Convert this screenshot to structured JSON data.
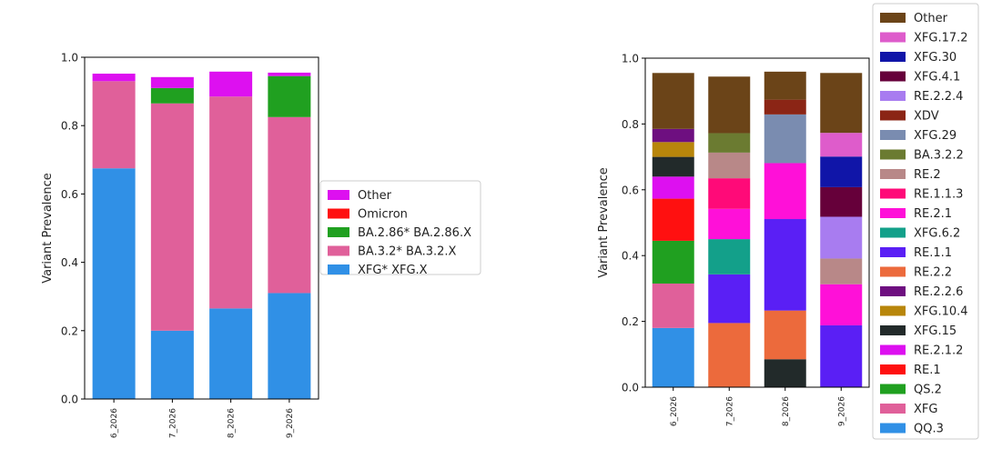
{
  "chart_data": [
    {
      "type": "bar",
      "stacked": true,
      "ylabel": "Variant Prevalence",
      "xlabel": "",
      "ylim": [
        0,
        1.0
      ],
      "yticks": [
        "0.0",
        "0.2",
        "0.4",
        "0.6",
        "0.8",
        "1.0"
      ],
      "categories": [
        "6_2026",
        "7_2026",
        "8_2026",
        "9_2026"
      ],
      "legend_position": "right",
      "legend": [
        "Other",
        "Omicron",
        "BA.2.86* BA.2.86.X",
        "BA.3.2* BA.3.2.X",
        "XFG* XFG.X"
      ],
      "series": [
        {
          "name": "XFG* XFG.X",
          "color": "#3090e6",
          "values": [
            0.675,
            0.2,
            0.265,
            0.31
          ]
        },
        {
          "name": "BA.3.2* BA.3.2.X",
          "color": "#e0609a",
          "values": [
            0.255,
            0.665,
            0.62,
            0.515
          ]
        },
        {
          "name": "BA.2.86* BA.2.86.X",
          "color": "#20a020",
          "values": [
            0.0,
            0.045,
            0.0,
            0.12
          ]
        },
        {
          "name": "Omicron",
          "color": "#ff1010",
          "values": [
            0.0,
            0.0,
            0.0,
            0.0
          ]
        },
        {
          "name": "Other",
          "color": "#dd10f0",
          "values": [
            0.022,
            0.032,
            0.073,
            0.01
          ]
        }
      ]
    },
    {
      "type": "bar",
      "stacked": true,
      "ylabel": "Variant Prevalence",
      "xlabel": "",
      "ylim": [
        0,
        1.0
      ],
      "yticks": [
        "0.0",
        "0.2",
        "0.4",
        "0.6",
        "0.8",
        "1.0"
      ],
      "categories": [
        "6_2026",
        "7_2026",
        "8_2026",
        "9_2026"
      ],
      "legend_position": "right",
      "legend": [
        "Other",
        "XFG.17.2",
        "XFG.30",
        "XFG.4.1",
        "RE.2.2.4",
        "XDV",
        "XFG.29",
        "BA.3.2.2",
        "RE.2",
        "RE.1.1.3",
        "RE.2.1",
        "XFG.6.2",
        "RE.1.1",
        "RE.2.2",
        "RE.2.2.6",
        "XFG.10.4",
        "XFG.15",
        "RE.2.1.2",
        "RE.1",
        "QS.2",
        "XFG",
        "QQ.3"
      ],
      "series": [
        {
          "name": "QQ.3",
          "color": "#3090e6",
          "values": [
            0.18,
            0,
            0,
            0
          ]
        },
        {
          "name": "XFG",
          "color": "#e0609a",
          "values": [
            0.135,
            0,
            0,
            0
          ]
        },
        {
          "name": "QS.2",
          "color": "#20a020",
          "values": [
            0.13,
            0,
            0,
            0
          ]
        },
        {
          "name": "RE.1",
          "color": "#ff1010",
          "values": [
            0.128,
            0,
            0,
            0
          ]
        },
        {
          "name": "RE.2.1.2",
          "color": "#dd10f0",
          "values": [
            0.067,
            0,
            0,
            0
          ]
        },
        {
          "name": "XFG.15",
          "color": "#222a2a",
          "values": [
            0.06,
            0,
            0.085,
            0
          ]
        },
        {
          "name": "XFG.10.4",
          "color": "#b8860b",
          "values": [
            0.045,
            0,
            0,
            0
          ]
        },
        {
          "name": "RE.2.2.6",
          "color": "#6e0f80",
          "values": [
            0.04,
            0,
            0,
            0
          ]
        },
        {
          "name": "RE.2.2",
          "color": "#ec6a3c",
          "values": [
            0,
            0.195,
            0.148,
            0
          ]
        },
        {
          "name": "RE.1.1",
          "color": "#5a1ff5",
          "values": [
            0,
            0.148,
            0.278,
            0.188
          ]
        },
        {
          "name": "XFG.6.2",
          "color": "#13a08a",
          "values": [
            0,
            0.107,
            0,
            0
          ]
        },
        {
          "name": "RE.2.1",
          "color": "#ff10d8",
          "values": [
            0,
            0.092,
            0.17,
            0.125
          ]
        },
        {
          "name": "RE.1.1.3",
          "color": "#ff0a78",
          "values": [
            0,
            0.093,
            0,
            0
          ]
        },
        {
          "name": "RE.2",
          "color": "#b88888",
          "values": [
            0,
            0.078,
            0,
            0.078
          ]
        },
        {
          "name": "BA.3.2.2",
          "color": "#6b7b31",
          "values": [
            0,
            0.059,
            0,
            0
          ]
        },
        {
          "name": "XFG.29",
          "color": "#7a8cb0",
          "values": [
            0,
            0,
            0.148,
            0
          ]
        },
        {
          "name": "XDV",
          "color": "#8b2515",
          "values": [
            0,
            0,
            0.045,
            0
          ]
        },
        {
          "name": "RE.2.2.4",
          "color": "#a87cf0",
          "values": [
            0,
            0,
            0,
            0.127
          ]
        },
        {
          "name": "XFG.4.1",
          "color": "#66003a",
          "values": [
            0,
            0,
            0,
            0.09
          ]
        },
        {
          "name": "XFG.30",
          "color": "#1015a8",
          "values": [
            0,
            0,
            0,
            0.093
          ]
        },
        {
          "name": "XFG.17.2",
          "color": "#de5ccb",
          "values": [
            0,
            0,
            0,
            0.072
          ]
        },
        {
          "name": "Other",
          "color": "#6b4418",
          "values": [
            0.17,
            0.172,
            0.085,
            0.182
          ]
        }
      ]
    }
  ]
}
